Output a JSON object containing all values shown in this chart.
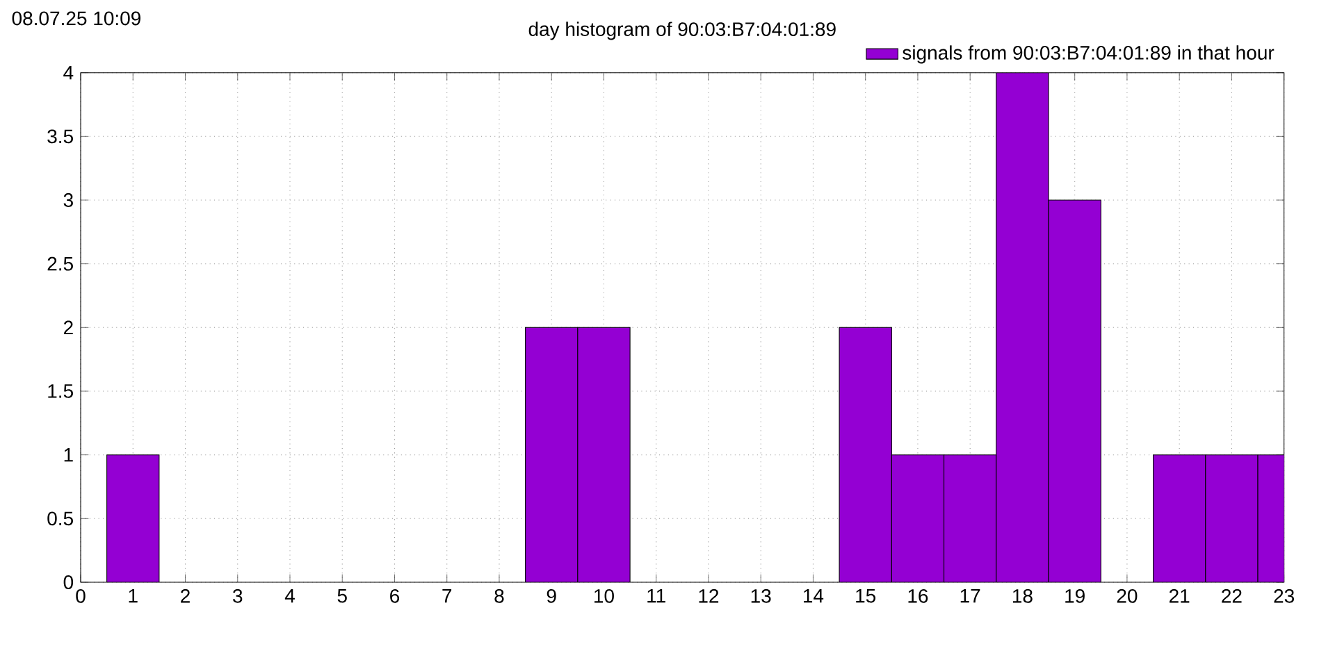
{
  "chart_data": {
    "type": "bar",
    "title": "day histogram of 90:03:B7:04:01:89",
    "annotations": [
      "08.07.25 10:09"
    ],
    "x": [
      0,
      1,
      2,
      3,
      4,
      5,
      6,
      7,
      8,
      9,
      10,
      11,
      12,
      13,
      14,
      15,
      16,
      17,
      18,
      19,
      20,
      21,
      22,
      23
    ],
    "series": [
      {
        "name": "signals from 90:03:B7:04:01:89 in that hour",
        "color": "#9400d3",
        "values": [
          0,
          1,
          0,
          0,
          0,
          0,
          0,
          0,
          0,
          2,
          2,
          0,
          0,
          0,
          0,
          2,
          1,
          1,
          4,
          3,
          0,
          1,
          1,
          1
        ]
      }
    ],
    "xlim": [
      0,
      23
    ],
    "xticks": [
      0,
      1,
      2,
      3,
      4,
      5,
      6,
      7,
      8,
      9,
      10,
      11,
      12,
      13,
      14,
      15,
      16,
      17,
      18,
      19,
      20,
      21,
      22,
      23
    ],
    "ylim": [
      0,
      4
    ],
    "yticks": [
      0,
      0.5,
      1,
      1.5,
      2,
      2.5,
      3,
      3.5,
      4
    ],
    "grid": true,
    "legend": "top right"
  }
}
